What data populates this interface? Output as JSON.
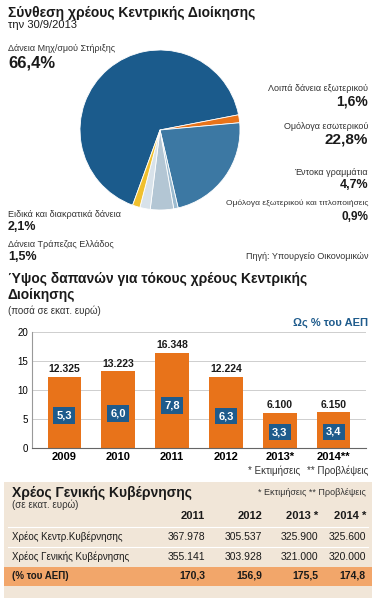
{
  "chart_data": [
    {
      "type": "pie",
      "title": "Σύνθεση χρέους Κεντρικής Διοίκησης",
      "subtitle": "την 30/9/2013",
      "categories": [
        "Δάνεια Μηχ/σμού Στήριξης",
        "Λοιπά δάνεια εξωτερικού",
        "Ομόλογα εσωτερικού",
        "Ομόλογα εξωτερικού και τιτλοποιήσεις",
        "Έντοκα γραμμάτια",
        "Ειδικά και διακρατικά δάνεια",
        "Δάνεια Τράπεζας Ελλάδος"
      ],
      "values": [
        66.4,
        1.6,
        22.8,
        0.9,
        4.7,
        2.1,
        1.5
      ],
      "value_labels": [
        "66,4%",
        "1,6%",
        "22,8%",
        "0,9%",
        "4,7%",
        "2,1%",
        "1,5%"
      ],
      "colors": [
        "#1b5b8c",
        "#e8731a",
        "#3c78a3",
        "#9bbbd0",
        "#b3c6d4",
        "#d8e2ea",
        "#f0c02e"
      ],
      "source": "Πηγή: Υπουργείο Οικονομικών"
    },
    {
      "type": "bar",
      "title": "Ύψος δαπανών για τόκους χρέους Κεντρικής Διοίκησης",
      "subtitle": "(ποσά σε εκατ. ευρώ)",
      "categories": [
        "2009",
        "2010",
        "2011",
        "2012",
        "2013*",
        "2014**"
      ],
      "values": [
        12.325,
        13.223,
        16.348,
        12.224,
        6.1,
        6.15
      ],
      "value_labels": [
        "12.325",
        "13.223",
        "16.348",
        "12.224",
        "6.100",
        "6.150"
      ],
      "data_labels": true,
      "color": "#e8731a",
      "ylim": [
        0,
        20
      ],
      "yticks": [
        0,
        5,
        10,
        15,
        20
      ],
      "grid": true,
      "gdp_share": {
        "name": "Ως % του ΑΕΠ",
        "values": [
          5.3,
          6.0,
          7.8,
          6.3,
          3.3,
          3.4
        ],
        "value_labels": [
          "5,3",
          "6,0",
          "7,8",
          "6,3",
          "3,3",
          "3,4"
        ],
        "color": "#1e5b8c"
      },
      "notes": [
        "* Εκτιμήσεις",
        "** Προβλέψεις"
      ]
    }
  ],
  "table": {
    "title": "Χρέος Γενικής Κυβέρνησης",
    "subtitle": "(σε εκατ. ευρώ)",
    "note": "* Εκτιμήσεις ** Προβλέψεις",
    "header": [
      "2011",
      "2012",
      "2013 *",
      "2014 *"
    ],
    "rows": [
      [
        "Χρέος Κεντρ.Κυβέρνησης",
        "367.978",
        "305.537",
        "325.900",
        "325.600"
      ],
      [
        "Χρέος Γενικής Κυβέρνησης",
        "355.141",
        "303.928",
        "321.000",
        "320.000"
      ],
      [
        "(% του ΑΕΠ)",
        "170,3",
        "156,9",
        "175,5",
        "174,8"
      ]
    ]
  }
}
